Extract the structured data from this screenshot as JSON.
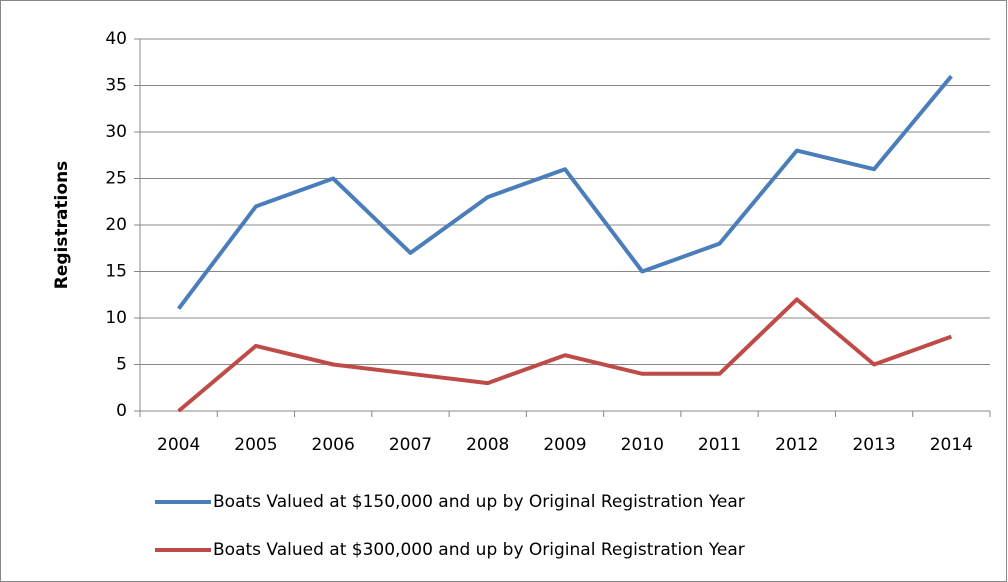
{
  "chart_data": {
    "type": "line",
    "y_label": "Registrations",
    "categories": [
      "2004",
      "2005",
      "2006",
      "2007",
      "2008",
      "2009",
      "2010",
      "2011",
      "2012",
      "2013",
      "2014"
    ],
    "series": [
      {
        "name": "Boats Valued at $150,000 and up by Original Registration Year",
        "color": "#4a7ebb",
        "values": [
          11,
          22,
          25,
          17,
          23,
          26,
          15,
          18,
          28,
          26,
          36
        ]
      },
      {
        "name": "Boats Valued at $300,000 and up by Original Registration Year",
        "color": "#be4b48",
        "values": [
          0,
          7,
          5,
          4,
          3,
          6,
          4,
          4,
          12,
          5,
          8
        ]
      }
    ],
    "ylim": [
      0,
      40
    ],
    "yticks": [
      0,
      5,
      10,
      15,
      20,
      25,
      30,
      35,
      40
    ],
    "grid": true,
    "legend": "bottom"
  }
}
